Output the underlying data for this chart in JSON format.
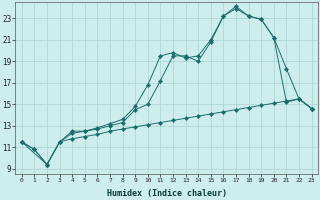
{
  "background_color": "#ceeeed",
  "grid_color": "#aad4d3",
  "line_color": "#1a6e6a",
  "xlabel": "Humidex (Indice chaleur)",
  "xlim": [
    -0.5,
    23.5
  ],
  "ylim": [
    8.5,
    24.5
  ],
  "xticks": [
    0,
    1,
    2,
    3,
    4,
    5,
    6,
    7,
    8,
    9,
    10,
    11,
    12,
    13,
    14,
    15,
    16,
    17,
    18,
    19,
    20,
    21,
    22,
    23
  ],
  "yticks": [
    9,
    11,
    13,
    15,
    17,
    19,
    21,
    23
  ],
  "curve1_x": [
    0,
    1,
    2,
    3,
    4,
    5,
    6,
    7,
    8,
    9,
    10,
    11,
    12,
    13,
    14,
    15,
    16,
    17,
    18,
    19,
    20,
    21,
    22,
    23
  ],
  "curve1_y": [
    11.5,
    10.8,
    9.4,
    11.5,
    12.5,
    12.5,
    12.8,
    13.2,
    13.6,
    14.8,
    16.8,
    19.5,
    19.8,
    19.3,
    19.5,
    21.0,
    23.2,
    24.1,
    23.2,
    22.9,
    21.2,
    18.3,
    15.5,
    14.6
  ],
  "curve2_x": [
    0,
    2,
    3,
    4,
    5,
    6,
    7,
    8,
    9,
    10,
    11,
    12,
    13,
    14,
    15,
    16,
    17,
    18,
    19,
    20,
    21,
    22,
    23
  ],
  "curve2_y": [
    11.5,
    9.4,
    11.5,
    12.3,
    12.5,
    12.7,
    13.0,
    13.3,
    14.5,
    15.0,
    17.2,
    19.5,
    19.5,
    19.0,
    20.8,
    23.2,
    23.9,
    23.2,
    22.9,
    21.2,
    15.2,
    15.5,
    14.6
  ],
  "curve3_x": [
    0,
    1,
    2,
    3,
    4,
    5,
    6,
    7,
    8,
    9,
    10,
    11,
    12,
    13,
    14,
    15,
    16,
    17,
    18,
    19,
    20,
    21,
    22,
    23
  ],
  "curve3_y": [
    11.5,
    10.8,
    9.4,
    11.5,
    11.8,
    12.0,
    12.2,
    12.5,
    12.7,
    12.9,
    13.1,
    13.3,
    13.5,
    13.7,
    13.9,
    14.1,
    14.3,
    14.5,
    14.7,
    14.9,
    15.1,
    15.3,
    15.5,
    14.6
  ]
}
